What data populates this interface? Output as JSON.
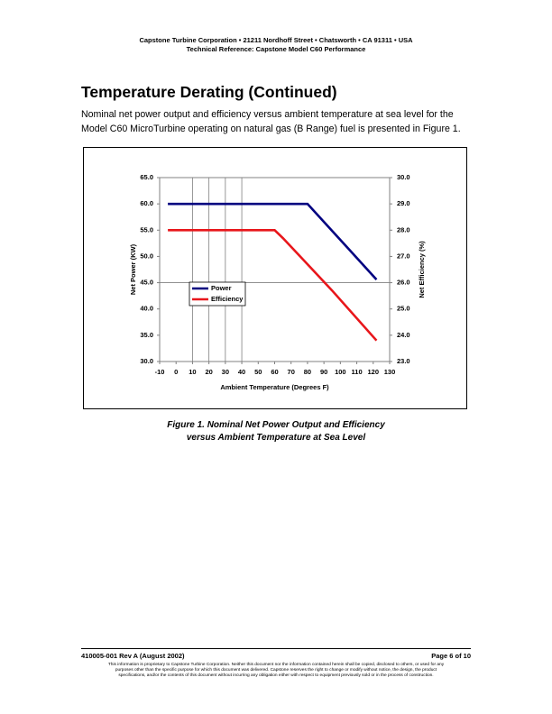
{
  "header": {
    "line1": "Capstone Turbine Corporation • 21211 Nordhoff Street • Chatsworth • CA 91311 • USA",
    "line2": "Technical Reference: Capstone Model C60 Performance"
  },
  "heading": "Temperature Derating (Continued)",
  "paragraph": "Nominal net power output and efficiency versus ambient temperature at sea level for the Model C60 MicroTurbine operating on natural gas (B Range) fuel is presented in Figure 1.",
  "chart_data": {
    "type": "line",
    "x_label": "Ambient Temperature (Degrees F)",
    "y_label": "Net Power (KW)",
    "y2_label": "Net Efficiency (%)",
    "xlim": [
      -10,
      130
    ],
    "xticks": [
      -10,
      0,
      10,
      20,
      30,
      40,
      50,
      60,
      70,
      80,
      90,
      100,
      110,
      120,
      130
    ],
    "ylim": [
      30,
      65
    ],
    "yticks": [
      {
        "value": 30,
        "label": "30.0"
      },
      {
        "value": 35,
        "label": "35.0"
      },
      {
        "value": 40,
        "label": "40.0"
      },
      {
        "value": 45,
        "label": "45.0"
      },
      {
        "value": 50,
        "label": "50.0"
      },
      {
        "value": 55,
        "label": "55.0"
      },
      {
        "value": 60,
        "label": "60.0"
      },
      {
        "value": 65,
        "label": "65.0"
      }
    ],
    "y2lim": [
      23,
      30
    ],
    "y2ticks": [
      {
        "value": 23,
        "label": "23.0"
      },
      {
        "value": 24,
        "label": "24.0"
      },
      {
        "value": 25,
        "label": "25.0"
      },
      {
        "value": 26,
        "label": "26.0"
      },
      {
        "value": 27,
        "label": "27.0"
      },
      {
        "value": 28,
        "label": "28.0"
      },
      {
        "value": 29,
        "label": "29.0"
      },
      {
        "value": 30,
        "label": "30.0"
      }
    ],
    "x_gridlines": [
      10,
      20,
      30,
      40
    ],
    "y_gridlines": [
      45
    ],
    "series": [
      {
        "name": "Power",
        "color": "#000080",
        "x": [
          -5,
          80,
          122
        ],
        "values": [
          60,
          60,
          45.6
        ]
      },
      {
        "name": "Efficiency",
        "color": "#e8161b",
        "axis": "y2",
        "x": [
          -5,
          60,
          65,
          80,
          95,
          122
        ],
        "values": [
          28.0,
          28.0,
          27.7,
          26.7,
          25.7,
          23.8
        ]
      }
    ]
  },
  "caption": {
    "line1": "Figure 1. Nominal Net Power Output and Efficiency",
    "line2": "versus Ambient Temperature at Sea Level"
  },
  "footer": {
    "doc_id": "410005-001 Rev A (August 2002)",
    "page": "Page 6 of 10",
    "notice": [
      "This information is proprietary to Capstone Turbine Corporation. Neither this document nor the information contained herein shall be copied, disclosed to others, or used for any",
      "purposes other than the specific purpose for which this document was delivered. Capstone reserves the right to change or modify without notice, the design, the product",
      "specifications, and/or the contents of this document without incurring any obligation either with respect to equipment previously sold or in the process of construction."
    ]
  }
}
